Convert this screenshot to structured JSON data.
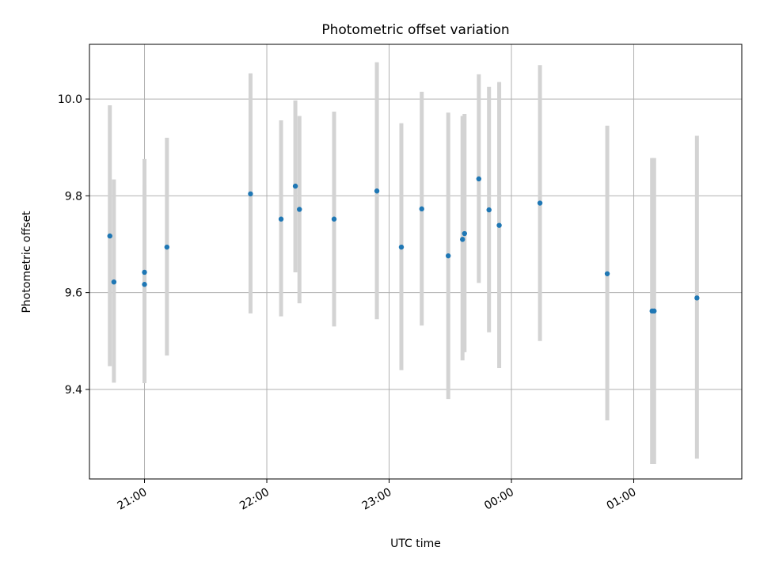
{
  "chart_data": {
    "type": "scatter",
    "title": "Photometric offset variation",
    "xlabel": "UTC time",
    "ylabel": "Photometric offset",
    "x_axis": {
      "kind": "time",
      "range": [
        "20:33",
        "01:53"
      ],
      "ticks": [
        "21:00",
        "22:00",
        "23:00",
        "00:00",
        "01:00"
      ]
    },
    "y_axis": {
      "range": [
        9.215,
        10.113
      ],
      "ticks": [
        "9.4",
        "9.6",
        "9.8",
        "10.0"
      ]
    },
    "grid": true,
    "colors": {
      "point": "#1f77b4",
      "errorbar": "#d3d3d3",
      "grid": "#b0b0b0"
    },
    "series": [
      {
        "points": [
          {
            "t": "20:43",
            "y": 9.717,
            "lo": 9.448,
            "hi": 9.987
          },
          {
            "t": "20:45",
            "y": 9.622,
            "lo": 9.414,
            "hi": 9.834
          },
          {
            "t": "21:00",
            "y": 9.617,
            "lo": 9.413,
            "hi": 9.822
          },
          {
            "t": "21:00",
            "y": 9.642,
            "lo": 9.413,
            "hi": 9.876
          },
          {
            "t": "21:11",
            "y": 9.694,
            "lo": 9.47,
            "hi": 9.92
          },
          {
            "t": "21:52",
            "y": 9.804,
            "lo": 9.557,
            "hi": 10.053
          },
          {
            "t": "22:07",
            "y": 9.752,
            "lo": 9.551,
            "hi": 9.956
          },
          {
            "t": "22:14",
            "y": 9.82,
            "lo": 9.642,
            "hi": 9.997
          },
          {
            "t": "22:16",
            "y": 9.772,
            "lo": 9.578,
            "hi": 9.965
          },
          {
            "t": "22:33",
            "y": 9.752,
            "lo": 9.53,
            "hi": 9.974
          },
          {
            "t": "22:54",
            "y": 9.81,
            "lo": 9.545,
            "hi": 10.076
          },
          {
            "t": "23:06",
            "y": 9.694,
            "lo": 9.44,
            "hi": 9.95
          },
          {
            "t": "23:16",
            "y": 9.773,
            "lo": 9.532,
            "hi": 10.015
          },
          {
            "t": "23:29",
            "y": 9.676,
            "lo": 9.38,
            "hi": 9.972
          },
          {
            "t": "23:36",
            "y": 9.71,
            "lo": 9.46,
            "hi": 9.965
          },
          {
            "t": "23:37",
            "y": 9.722,
            "lo": 9.477,
            "hi": 9.969
          },
          {
            "t": "23:44",
            "y": 9.835,
            "lo": 9.62,
            "hi": 10.051
          },
          {
            "t": "23:49",
            "y": 9.771,
            "lo": 9.518,
            "hi": 10.025
          },
          {
            "t": "23:54",
            "y": 9.739,
            "lo": 9.444,
            "hi": 10.035
          },
          {
            "t": "00:14",
            "y": 9.785,
            "lo": 9.5,
            "hi": 10.07
          },
          {
            "t": "00:47",
            "y": 9.639,
            "lo": 9.336,
            "hi": 9.945
          },
          {
            "t": "01:09",
            "y": 9.562,
            "lo": 9.246,
            "hi": 9.878
          },
          {
            "t": "01:10",
            "y": 9.562,
            "lo": 9.246,
            "hi": 9.878
          },
          {
            "t": "01:31",
            "y": 9.589,
            "lo": 9.257,
            "hi": 9.924
          }
        ]
      }
    ]
  }
}
